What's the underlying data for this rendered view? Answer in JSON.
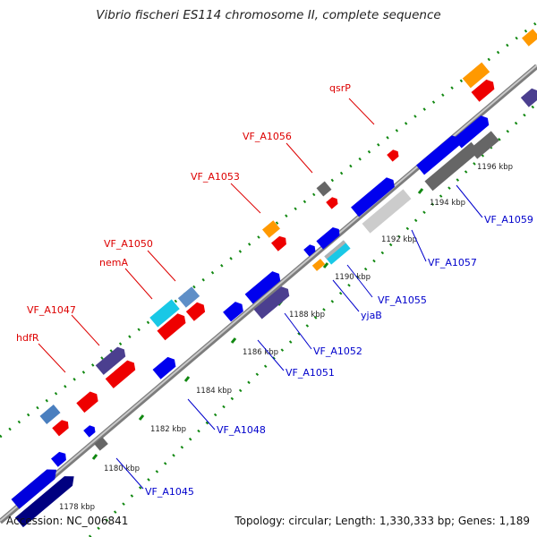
{
  "title": "Vibrio fischeri ES114 chromosome II, complete sequence",
  "footer": {
    "accession": "Accession: NC_006841",
    "summary": "Topology: circular; Length: 1,330,333 bp; Genes: 1,189"
  },
  "colors": {
    "backbone": "#8f8f8f",
    "forward_cds": "#0000ee",
    "reverse_cds": "#ee0000",
    "rna": "#ff9900",
    "other": "#666666",
    "label_top": "#dd0000",
    "label_bottom": "#0000cc",
    "dotted_track": "#118811"
  },
  "scale_ticks": [
    "1178 kbp",
    "1180 kbp",
    "1182 kbp",
    "1184 kbp",
    "1186 kbp",
    "1188 kbp",
    "1190 kbp",
    "1192 kbp",
    "1194 kbp",
    "1196 kbp"
  ],
  "top_labels": [
    "hdfR",
    "VF_A1047",
    "nemA",
    "VF_A1050",
    "VF_A1053",
    "VF_A1056",
    "qsrP"
  ],
  "bottom_labels": [
    "VF_A1045",
    "VF_A1048",
    "VF_A1051",
    "VF_A1052",
    "yjaB",
    "VF_A1055",
    "VF_A1057",
    "VF_A1059"
  ]
}
